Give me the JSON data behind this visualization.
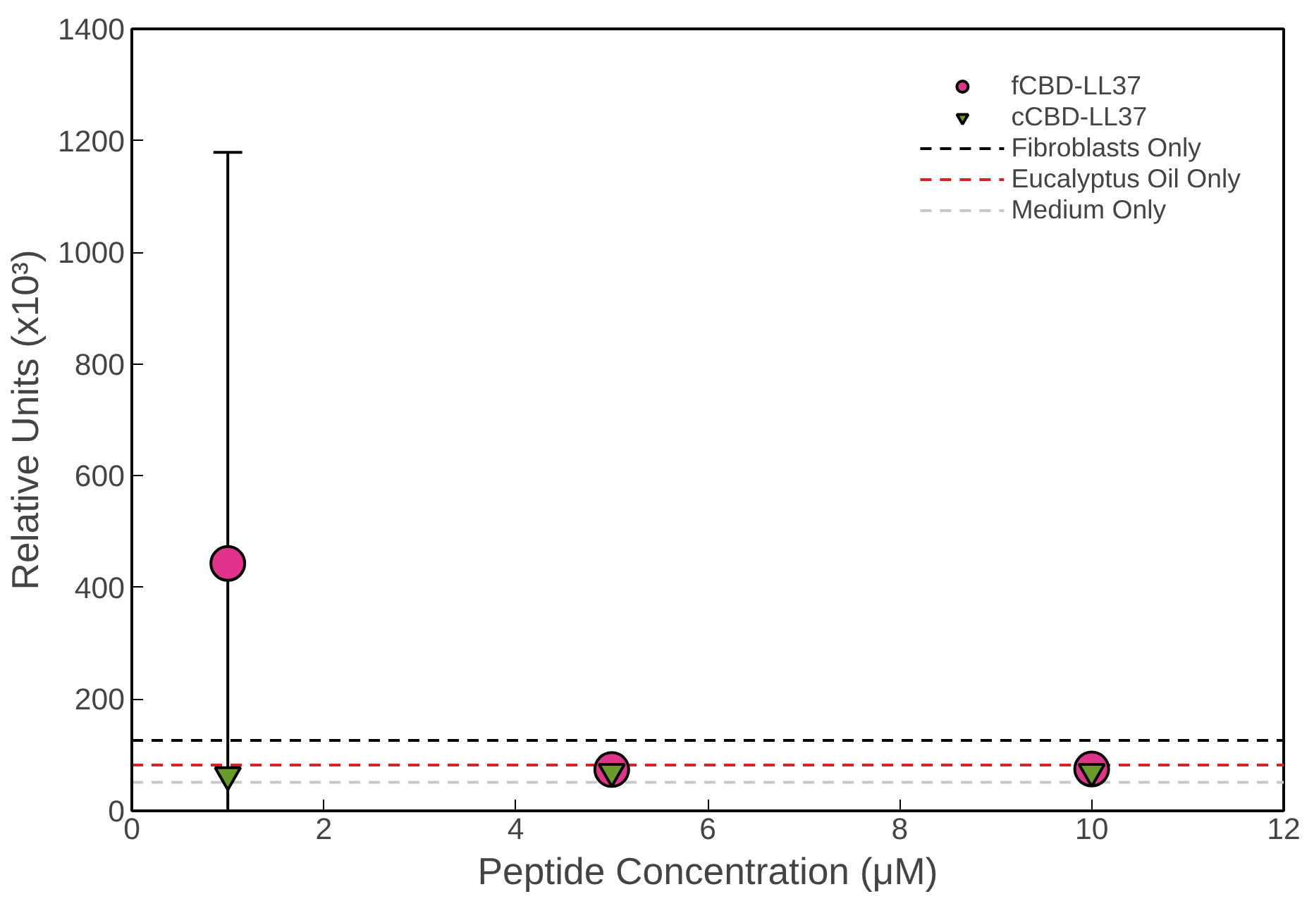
{
  "chart_data": {
    "type": "scatter",
    "xlabel": "Peptide Concentration (μM)",
    "ylabel": "Relative Units (x10³)",
    "x": [
      1,
      5,
      10
    ],
    "series": [
      {
        "name": "fCBD-LL37",
        "color": "#e0338a",
        "marker": "circle",
        "values": [
          443,
          74,
          75
        ],
        "errors": [
          [
            0,
            1179
          ],
          null,
          null
        ]
      },
      {
        "name": "cCBD-LL37",
        "color": "#6a9a2a",
        "marker": "triangle",
        "values": [
          64,
          70,
          70
        ]
      }
    ],
    "ref_lines": [
      {
        "axis": "y",
        "value": 126,
        "label": "Fibroblasts Only",
        "color": "#000000",
        "line_style": "dashed"
      },
      {
        "axis": "y",
        "value": 82,
        "label": "Eucalyptus Oil Only",
        "color": "#e02020",
        "line_style": "dashed"
      },
      {
        "axis": "y",
        "value": 51,
        "label": "Medium Only",
        "color": "#c8c8c8",
        "line_style": "dashed"
      }
    ],
    "xlim": [
      0,
      12
    ],
    "xticks": [
      0,
      2,
      4,
      6,
      8,
      10,
      12
    ],
    "ylim": [
      0,
      1400
    ],
    "yticks": [
      0,
      200,
      400,
      600,
      800,
      1000,
      1200,
      1400
    ],
    "grid": false,
    "legend": "top right"
  }
}
